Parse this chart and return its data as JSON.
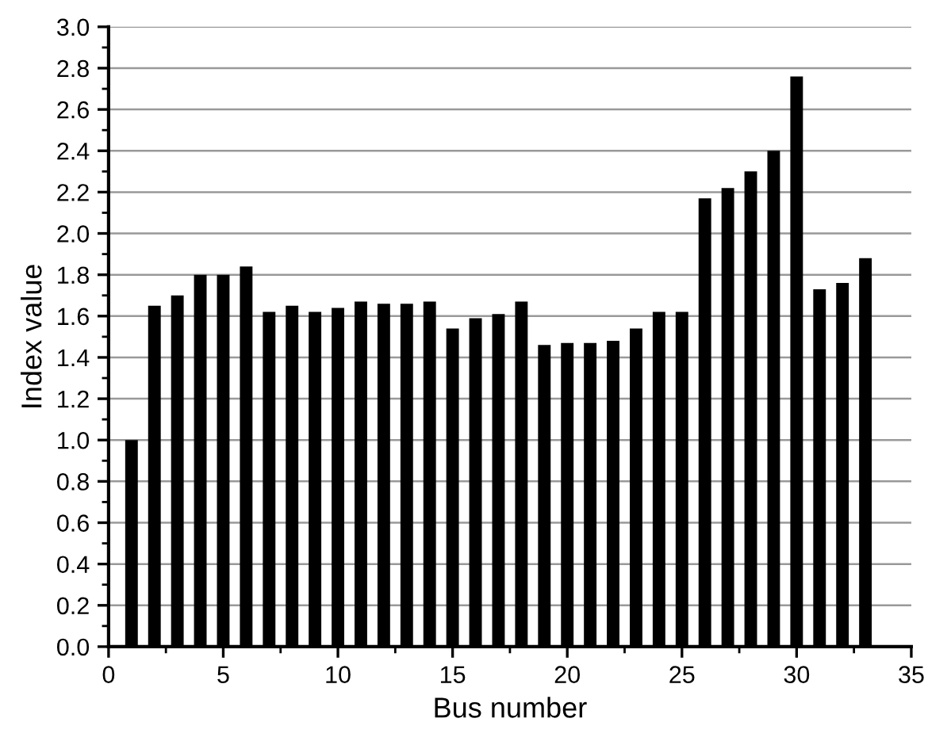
{
  "chart_data": {
    "type": "bar",
    "xlabel": "Bus number",
    "ylabel": "Index value",
    "x": [
      1,
      2,
      3,
      4,
      5,
      6,
      7,
      8,
      9,
      10,
      11,
      12,
      13,
      14,
      15,
      16,
      17,
      18,
      19,
      20,
      21,
      22,
      23,
      24,
      25,
      26,
      27,
      28,
      29,
      30,
      31,
      32,
      33
    ],
    "values": [
      1.0,
      1.65,
      1.7,
      1.8,
      1.8,
      1.84,
      1.62,
      1.65,
      1.62,
      1.64,
      1.67,
      1.66,
      1.66,
      1.67,
      1.54,
      1.59,
      1.61,
      1.67,
      1.46,
      1.47,
      1.47,
      1.48,
      1.54,
      1.62,
      1.62,
      2.17,
      2.22,
      2.3,
      2.4,
      2.76,
      1.73,
      1.76,
      1.88
    ],
    "color": "#000000",
    "xlim": [
      0,
      35
    ],
    "xticks": [
      0,
      5,
      10,
      15,
      20,
      25,
      30,
      35
    ],
    "ylim": [
      0,
      3.0
    ],
    "yticks": [
      {
        "value": 0,
        "label": "0.0"
      },
      {
        "value": 0.2,
        "label": "0.2"
      },
      {
        "value": 0.4,
        "label": "0.4"
      },
      {
        "value": 0.6,
        "label": "0.6"
      },
      {
        "value": 0.8,
        "label": "0.8"
      },
      {
        "value": 1.0,
        "label": "1.0"
      },
      {
        "value": 1.2,
        "label": "1.2"
      },
      {
        "value": 1.4,
        "label": "1.4"
      },
      {
        "value": 1.6,
        "label": "1.6"
      },
      {
        "value": 1.8,
        "label": "1.8"
      },
      {
        "value": 2.0,
        "label": "2.0"
      },
      {
        "value": 2.2,
        "label": "2.2"
      },
      {
        "value": 2.4,
        "label": "2.4"
      },
      {
        "value": 2.6,
        "label": "2.6"
      },
      {
        "value": 2.8,
        "label": "2.8"
      },
      {
        "value": 3.0,
        "label": "3.0"
      }
    ],
    "grid": "y"
  }
}
